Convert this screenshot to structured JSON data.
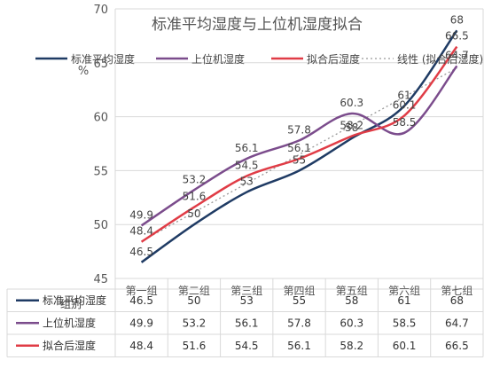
{
  "chart_data": {
    "type": "line",
    "title": "标准平均湿度与上位机湿度拟合",
    "ylabel": "%",
    "ylim": [
      45,
      70
    ],
    "yticks": [
      45,
      50,
      55,
      60,
      65,
      70
    ],
    "grid": true,
    "legend_position": "top",
    "table_header": "组别",
    "categories": [
      "第一组",
      "第二组",
      "第三组",
      "第四组",
      "第五组",
      "第六组",
      "第七组"
    ],
    "series": [
      {
        "name": "标准平均湿度",
        "color": "#1f3b64",
        "values": [
          46.5,
          50,
          53,
          55,
          58,
          61,
          68
        ]
      },
      {
        "name": "上位机湿度",
        "color": "#7b4c8c",
        "values": [
          49.9,
          53.2,
          56.1,
          57.8,
          60.3,
          58.5,
          64.7
        ]
      },
      {
        "name": "拟合后湿度",
        "color": "#e03c46",
        "values": [
          48.4,
          51.6,
          54.5,
          56.1,
          58.2,
          60.1,
          66.5
        ]
      }
    ],
    "trendline": {
      "name": "线性 (拟合后湿度)",
      "color": "#999999",
      "dash": "2,3"
    }
  }
}
